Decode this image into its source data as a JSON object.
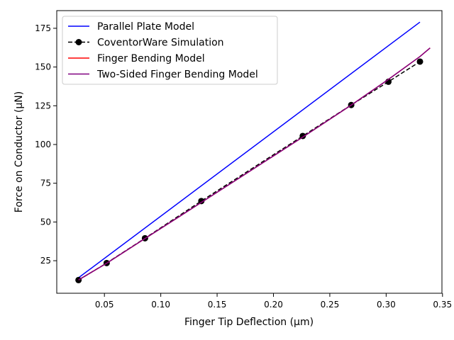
{
  "chart_data": {
    "type": "line",
    "title": "",
    "xlabel": "Finger Tip Deflection (μm)",
    "ylabel": "Force on Conductor (μN)",
    "xlim": [
      0.0077,
      0.3495
    ],
    "ylim": [
      4.0,
      186.4
    ],
    "xticks": [
      0.05,
      0.1,
      0.15,
      0.2,
      0.25,
      0.3,
      0.35
    ],
    "xtick_labels": [
      "0.05",
      "0.10",
      "0.15",
      "0.20",
      "0.25",
      "0.30",
      "0.35"
    ],
    "yticks": [
      25,
      50,
      75,
      100,
      125,
      150,
      175
    ],
    "ytick_labels": [
      "25",
      "50",
      "75",
      "100",
      "125",
      "150",
      "175"
    ],
    "grid": false,
    "legend_position": "upper-left",
    "series": [
      {
        "name": "Parallel Plate Model",
        "color": "#0000ff",
        "style": "solid",
        "marker": "none",
        "x": [
          0.027,
          0.33
        ],
        "y": [
          14.0,
          179.0
        ]
      },
      {
        "name": "CoventorWare Simulation",
        "color": "#000000",
        "style": "dashed",
        "marker": "circle",
        "x": [
          0.027,
          0.052,
          0.086,
          0.136,
          0.226,
          0.269,
          0.302,
          0.33
        ],
        "y": [
          12.5,
          23.5,
          39.5,
          63.5,
          105.5,
          125.5,
          140.5,
          153.5
        ]
      },
      {
        "name": "Finger Bending Model",
        "color": "#ff0000",
        "style": "solid",
        "marker": "none",
        "x": [
          0.027,
          0.052,
          0.086,
          0.136,
          0.226,
          0.269,
          0.302,
          0.33,
          0.339
        ],
        "y": [
          12.6,
          23.4,
          39.3,
          62.6,
          104.8,
          125.4,
          142.0,
          156.8,
          162.3
        ]
      },
      {
        "name": "Two-Sided Finger Bending Model",
        "color": "#800080",
        "style": "solid",
        "marker": "none",
        "x": [
          0.027,
          0.052,
          0.086,
          0.136,
          0.226,
          0.269,
          0.302,
          0.33,
          0.339
        ],
        "y": [
          12.6,
          23.4,
          39.3,
          62.6,
          104.8,
          125.4,
          142.0,
          156.8,
          162.3
        ]
      }
    ]
  }
}
